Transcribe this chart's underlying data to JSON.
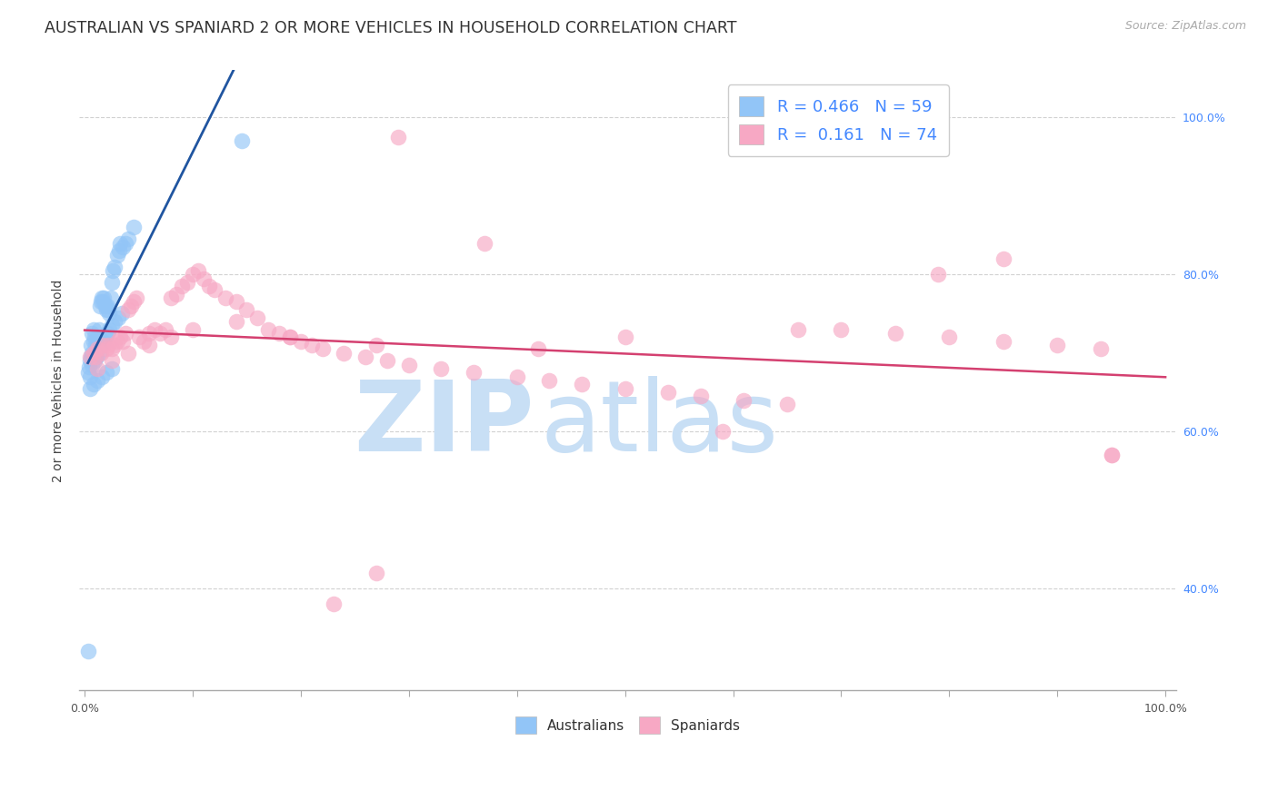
{
  "title": "AUSTRALIAN VS SPANIARD 2 OR MORE VEHICLES IN HOUSEHOLD CORRELATION CHART",
  "source": "Source: ZipAtlas.com",
  "ylabel": "2 or more Vehicles in Household",
  "aus_R": 0.466,
  "aus_N": 59,
  "spa_R": 0.161,
  "spa_N": 74,
  "aus_color": "#92c5f7",
  "spa_color": "#f7a8c4",
  "aus_line_color": "#2055a0",
  "spa_line_color": "#d44070",
  "background_color": "#ffffff",
  "watermark_left": "ZIP",
  "watermark_right": "atlas",
  "watermark_color_left": "#c8dff5",
  "watermark_color_right": "#c8dff5",
  "title_fontsize": 12.5,
  "source_fontsize": 9,
  "ylabel_fontsize": 10,
  "tick_fontsize": 9,
  "legend_fontsize": 13,
  "right_tick_color": "#4488ff",
  "grid_color": "#cccccc",
  "ylim_low": 0.27,
  "ylim_high": 1.06,
  "xlim_low": -0.005,
  "xlim_high": 1.01,
  "aus_x": [
    0.003,
    0.004,
    0.005,
    0.006,
    0.006,
    0.007,
    0.007,
    0.008,
    0.008,
    0.009,
    0.009,
    0.01,
    0.01,
    0.011,
    0.012,
    0.013,
    0.014,
    0.015,
    0.016,
    0.017,
    0.018,
    0.019,
    0.02,
    0.021,
    0.022,
    0.023,
    0.024,
    0.025,
    0.026,
    0.028,
    0.03,
    0.032,
    0.033,
    0.035,
    0.038,
    0.04,
    0.005,
    0.007,
    0.009,
    0.011,
    0.013,
    0.015,
    0.017,
    0.019,
    0.021,
    0.023,
    0.025,
    0.028,
    0.031,
    0.034,
    0.005,
    0.008,
    0.012,
    0.016,
    0.02,
    0.025,
    0.003,
    0.045,
    0.145
  ],
  "aus_y": [
    0.675,
    0.682,
    0.69,
    0.695,
    0.71,
    0.7,
    0.725,
    0.715,
    0.73,
    0.72,
    0.695,
    0.71,
    0.695,
    0.715,
    0.72,
    0.73,
    0.76,
    0.765,
    0.77,
    0.765,
    0.77,
    0.76,
    0.755,
    0.76,
    0.755,
    0.75,
    0.77,
    0.79,
    0.805,
    0.81,
    0.825,
    0.83,
    0.84,
    0.835,
    0.84,
    0.845,
    0.67,
    0.685,
    0.69,
    0.695,
    0.7,
    0.71,
    0.715,
    0.72,
    0.725,
    0.73,
    0.735,
    0.74,
    0.745,
    0.75,
    0.655,
    0.66,
    0.665,
    0.67,
    0.675,
    0.68,
    0.32,
    0.86,
    0.97
  ],
  "spa_x": [
    0.005,
    0.008,
    0.01,
    0.012,
    0.015,
    0.017,
    0.02,
    0.022,
    0.025,
    0.028,
    0.03,
    0.033,
    0.035,
    0.038,
    0.04,
    0.043,
    0.045,
    0.048,
    0.05,
    0.055,
    0.06,
    0.065,
    0.07,
    0.075,
    0.08,
    0.085,
    0.09,
    0.095,
    0.1,
    0.105,
    0.11,
    0.115,
    0.12,
    0.13,
    0.14,
    0.15,
    0.16,
    0.17,
    0.18,
    0.19,
    0.2,
    0.21,
    0.22,
    0.24,
    0.26,
    0.28,
    0.3,
    0.33,
    0.36,
    0.4,
    0.43,
    0.46,
    0.5,
    0.54,
    0.57,
    0.61,
    0.65,
    0.7,
    0.75,
    0.8,
    0.85,
    0.9,
    0.94,
    0.012,
    0.025,
    0.04,
    0.06,
    0.08,
    0.1,
    0.14,
    0.19,
    0.27,
    0.42,
    0.95
  ],
  "spa_y": [
    0.695,
    0.7,
    0.695,
    0.705,
    0.7,
    0.71,
    0.705,
    0.71,
    0.705,
    0.71,
    0.715,
    0.72,
    0.715,
    0.725,
    0.755,
    0.76,
    0.765,
    0.77,
    0.72,
    0.715,
    0.725,
    0.73,
    0.725,
    0.73,
    0.77,
    0.775,
    0.785,
    0.79,
    0.8,
    0.805,
    0.795,
    0.785,
    0.78,
    0.77,
    0.765,
    0.755,
    0.745,
    0.73,
    0.725,
    0.72,
    0.715,
    0.71,
    0.705,
    0.7,
    0.695,
    0.69,
    0.685,
    0.68,
    0.675,
    0.67,
    0.665,
    0.66,
    0.655,
    0.65,
    0.645,
    0.64,
    0.635,
    0.73,
    0.725,
    0.72,
    0.715,
    0.71,
    0.705,
    0.68,
    0.69,
    0.7,
    0.71,
    0.72,
    0.73,
    0.74,
    0.72,
    0.71,
    0.705,
    0.57
  ],
  "spa_x_special": [
    0.29,
    0.37,
    0.5,
    0.59,
    0.66,
    0.79,
    0.85,
    0.95,
    0.23,
    0.27
  ],
  "spa_y_special": [
    0.975,
    0.84,
    0.72,
    0.6,
    0.73,
    0.8,
    0.82,
    0.57,
    0.38,
    0.42
  ]
}
